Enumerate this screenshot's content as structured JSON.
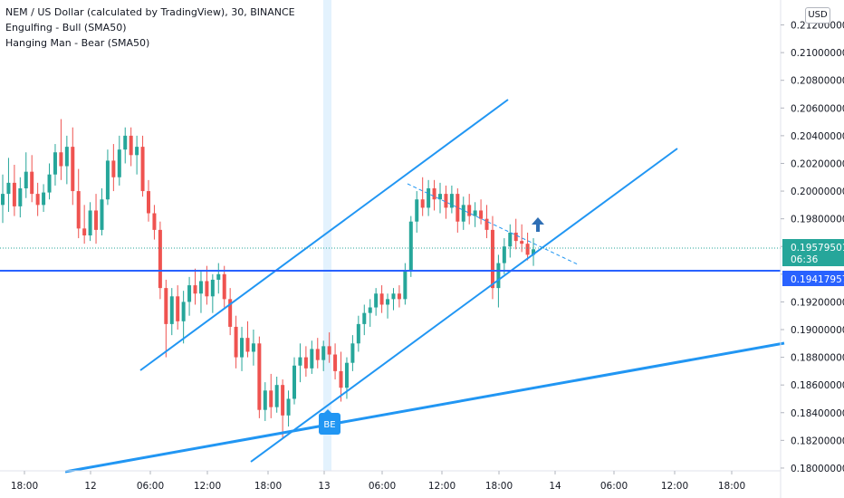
{
  "legend": {
    "title": "NEM / US Dollar (calculated by TradingView), 30, BINANCE",
    "indicator1": "Engulfing - Bull (SMA50)",
    "indicator2": "Hanging Man - Bear (SMA50)"
  },
  "currency_badge": "USD",
  "colors": {
    "up": "#26a69a",
    "down": "#ef5350",
    "drawing": "#2196f3",
    "price_line": "#2962ff",
    "last_price": "#26a69a",
    "arrow": "#2f6fb5",
    "highlight": "#e3f2fd"
  },
  "chart_data": {
    "type": "candlestick",
    "symbol": "NEM / US Dollar",
    "interval": "30",
    "exchange": "BINANCE",
    "x_tick_labels": [
      "18:00",
      "12",
      "06:00",
      "12:00",
      "18:00",
      "13",
      "06:00",
      "12:00",
      "18:00",
      "14",
      "06:00",
      "12:00",
      "18:00"
    ],
    "y_tick_labels": [
      "0.21200000",
      "0.21000000",
      "0.20800000",
      "0.20600000",
      "0.20400000",
      "0.20200000",
      "0.20000000",
      "0.19800000",
      "0.19600000",
      "0.19400000",
      "0.19200000",
      "0.19000000",
      "0.18800000",
      "0.18600000",
      "0.18400000",
      "0.18200000",
      "0.18000000"
    ],
    "ylim": [
      0.1798,
      0.2138
    ],
    "last_price_label": "0.19579501",
    "countdown_label": "06:36",
    "horizontal_level_label": "0.19417957",
    "horizontal_level": 0.19417957,
    "pattern_marker": "BE",
    "candles": [
      {
        "o": 0.199,
        "h": 0.2012,
        "l": 0.1977,
        "c": 0.1998
      },
      {
        "o": 0.1998,
        "h": 0.2024,
        "l": 0.1985,
        "c": 0.2006
      },
      {
        "o": 0.2006,
        "h": 0.2019,
        "l": 0.1982,
        "c": 0.1989
      },
      {
        "o": 0.1989,
        "h": 0.201,
        "l": 0.1981,
        "c": 0.2002
      },
      {
        "o": 0.2002,
        "h": 0.2028,
        "l": 0.1995,
        "c": 0.2014
      },
      {
        "o": 0.2014,
        "h": 0.2026,
        "l": 0.1992,
        "c": 0.1998
      },
      {
        "o": 0.1998,
        "h": 0.2006,
        "l": 0.1982,
        "c": 0.199
      },
      {
        "o": 0.199,
        "h": 0.2005,
        "l": 0.1985,
        "c": 0.1999
      },
      {
        "o": 0.1999,
        "h": 0.202,
        "l": 0.1994,
        "c": 0.2012
      },
      {
        "o": 0.2012,
        "h": 0.2034,
        "l": 0.2004,
        "c": 0.2028
      },
      {
        "o": 0.2028,
        "h": 0.2052,
        "l": 0.2008,
        "c": 0.2018
      },
      {
        "o": 0.2018,
        "h": 0.204,
        "l": 0.2005,
        "c": 0.2032
      },
      {
        "o": 0.2032,
        "h": 0.2046,
        "l": 0.199,
        "c": 0.2
      },
      {
        "o": 0.2,
        "h": 0.2016,
        "l": 0.1966,
        "c": 0.1973
      },
      {
        "o": 0.1973,
        "h": 0.199,
        "l": 0.1962,
        "c": 0.1968
      },
      {
        "o": 0.1968,
        "h": 0.1992,
        "l": 0.1964,
        "c": 0.1986
      },
      {
        "o": 0.1986,
        "h": 0.1998,
        "l": 0.1962,
        "c": 0.1972
      },
      {
        "o": 0.1972,
        "h": 0.2002,
        "l": 0.1968,
        "c": 0.1994
      },
      {
        "o": 0.1994,
        "h": 0.203,
        "l": 0.199,
        "c": 0.2022
      },
      {
        "o": 0.2022,
        "h": 0.2034,
        "l": 0.2,
        "c": 0.201
      },
      {
        "o": 0.201,
        "h": 0.204,
        "l": 0.2004,
        "c": 0.203
      },
      {
        "o": 0.203,
        "h": 0.2046,
        "l": 0.202,
        "c": 0.204
      },
      {
        "o": 0.204,
        "h": 0.2046,
        "l": 0.2018,
        "c": 0.2026
      },
      {
        "o": 0.2026,
        "h": 0.204,
        "l": 0.2012,
        "c": 0.2032
      },
      {
        "o": 0.2032,
        "h": 0.204,
        "l": 0.1996,
        "c": 0.2
      },
      {
        "o": 0.2,
        "h": 0.2008,
        "l": 0.1978,
        "c": 0.1984
      },
      {
        "o": 0.1984,
        "h": 0.199,
        "l": 0.1965,
        "c": 0.1972
      },
      {
        "o": 0.1972,
        "h": 0.1978,
        "l": 0.1922,
        "c": 0.193
      },
      {
        "o": 0.193,
        "h": 0.1936,
        "l": 0.188,
        "c": 0.1904
      },
      {
        "o": 0.1904,
        "h": 0.193,
        "l": 0.1896,
        "c": 0.1924
      },
      {
        "o": 0.1924,
        "h": 0.1932,
        "l": 0.19,
        "c": 0.1906
      },
      {
        "o": 0.1906,
        "h": 0.1928,
        "l": 0.189,
        "c": 0.192
      },
      {
        "o": 0.192,
        "h": 0.1938,
        "l": 0.191,
        "c": 0.1932
      },
      {
        "o": 0.1932,
        "h": 0.1944,
        "l": 0.1918,
        "c": 0.1926
      },
      {
        "o": 0.1926,
        "h": 0.1942,
        "l": 0.1912,
        "c": 0.1935
      },
      {
        "o": 0.1935,
        "h": 0.1946,
        "l": 0.1918,
        "c": 0.1924
      },
      {
        "o": 0.1924,
        "h": 0.194,
        "l": 0.1912,
        "c": 0.1936
      },
      {
        "o": 0.1936,
        "h": 0.1948,
        "l": 0.1926,
        "c": 0.194
      },
      {
        "o": 0.194,
        "h": 0.1946,
        "l": 0.1916,
        "c": 0.1922
      },
      {
        "o": 0.1922,
        "h": 0.193,
        "l": 0.1896,
        "c": 0.1902
      },
      {
        "o": 0.1902,
        "h": 0.191,
        "l": 0.1872,
        "c": 0.188
      },
      {
        "o": 0.188,
        "h": 0.1902,
        "l": 0.187,
        "c": 0.1894
      },
      {
        "o": 0.1894,
        "h": 0.1906,
        "l": 0.188,
        "c": 0.1884
      },
      {
        "o": 0.1884,
        "h": 0.19,
        "l": 0.1874,
        "c": 0.189
      },
      {
        "o": 0.189,
        "h": 0.1895,
        "l": 0.1836,
        "c": 0.1842
      },
      {
        "o": 0.1842,
        "h": 0.1862,
        "l": 0.1834,
        "c": 0.1856
      },
      {
        "o": 0.1856,
        "h": 0.1868,
        "l": 0.1836,
        "c": 0.1844
      },
      {
        "o": 0.1844,
        "h": 0.1866,
        "l": 0.184,
        "c": 0.186
      },
      {
        "o": 0.186,
        "h": 0.1864,
        "l": 0.1822,
        "c": 0.1838
      },
      {
        "o": 0.1838,
        "h": 0.1856,
        "l": 0.183,
        "c": 0.185
      },
      {
        "o": 0.185,
        "h": 0.188,
        "l": 0.1846,
        "c": 0.1874
      },
      {
        "o": 0.1874,
        "h": 0.189,
        "l": 0.1862,
        "c": 0.188
      },
      {
        "o": 0.188,
        "h": 0.1888,
        "l": 0.1866,
        "c": 0.1872
      },
      {
        "o": 0.1872,
        "h": 0.1892,
        "l": 0.1868,
        "c": 0.1886
      },
      {
        "o": 0.1886,
        "h": 0.1894,
        "l": 0.1872,
        "c": 0.1878
      },
      {
        "o": 0.1878,
        "h": 0.1892,
        "l": 0.187,
        "c": 0.1888
      },
      {
        "o": 0.1888,
        "h": 0.1898,
        "l": 0.1876,
        "c": 0.1882
      },
      {
        "o": 0.1882,
        "h": 0.189,
        "l": 0.1864,
        "c": 0.187
      },
      {
        "o": 0.187,
        "h": 0.1884,
        "l": 0.1848,
        "c": 0.1858
      },
      {
        "o": 0.1858,
        "h": 0.188,
        "l": 0.185,
        "c": 0.1876
      },
      {
        "o": 0.1876,
        "h": 0.1896,
        "l": 0.187,
        "c": 0.189
      },
      {
        "o": 0.189,
        "h": 0.191,
        "l": 0.1884,
        "c": 0.1904
      },
      {
        "o": 0.1904,
        "h": 0.1918,
        "l": 0.1896,
        "c": 0.1912
      },
      {
        "o": 0.1912,
        "h": 0.1922,
        "l": 0.1902,
        "c": 0.1916
      },
      {
        "o": 0.1916,
        "h": 0.193,
        "l": 0.191,
        "c": 0.1926
      },
      {
        "o": 0.1926,
        "h": 0.1932,
        "l": 0.1912,
        "c": 0.1918
      },
      {
        "o": 0.1918,
        "h": 0.1926,
        "l": 0.1908,
        "c": 0.1922
      },
      {
        "o": 0.1922,
        "h": 0.193,
        "l": 0.1914,
        "c": 0.1926
      },
      {
        "o": 0.1926,
        "h": 0.1932,
        "l": 0.1916,
        "c": 0.1922
      },
      {
        "o": 0.1922,
        "h": 0.1948,
        "l": 0.1918,
        "c": 0.1942
      },
      {
        "o": 0.1942,
        "h": 0.1982,
        "l": 0.1938,
        "c": 0.1978
      },
      {
        "o": 0.1978,
        "h": 0.2,
        "l": 0.197,
        "c": 0.1994
      },
      {
        "o": 0.1994,
        "h": 0.201,
        "l": 0.1982,
        "c": 0.1988
      },
      {
        "o": 0.1988,
        "h": 0.2008,
        "l": 0.1982,
        "c": 0.2002
      },
      {
        "o": 0.2002,
        "h": 0.2008,
        "l": 0.1986,
        "c": 0.1994
      },
      {
        "o": 0.1994,
        "h": 0.2006,
        "l": 0.1984,
        "c": 0.1998
      },
      {
        "o": 0.1998,
        "h": 0.2004,
        "l": 0.198,
        "c": 0.1988
      },
      {
        "o": 0.1988,
        "h": 0.2004,
        "l": 0.1984,
        "c": 0.1998
      },
      {
        "o": 0.1998,
        "h": 0.2002,
        "l": 0.197,
        "c": 0.1978
      },
      {
        "o": 0.1978,
        "h": 0.1996,
        "l": 0.1972,
        "c": 0.199
      },
      {
        "o": 0.199,
        "h": 0.1998,
        "l": 0.1976,
        "c": 0.1982
      },
      {
        "o": 0.1982,
        "h": 0.1992,
        "l": 0.1974,
        "c": 0.1986
      },
      {
        "o": 0.1986,
        "h": 0.1994,
        "l": 0.1976,
        "c": 0.198
      },
      {
        "o": 0.198,
        "h": 0.199,
        "l": 0.1966,
        "c": 0.1972
      },
      {
        "o": 0.1972,
        "h": 0.1982,
        "l": 0.1922,
        "c": 0.193
      },
      {
        "o": 0.193,
        "h": 0.1954,
        "l": 0.1916,
        "c": 0.1948
      },
      {
        "o": 0.1948,
        "h": 0.1966,
        "l": 0.194,
        "c": 0.196
      },
      {
        "o": 0.196,
        "h": 0.1976,
        "l": 0.1952,
        "c": 0.197
      },
      {
        "o": 0.197,
        "h": 0.198,
        "l": 0.1958,
        "c": 0.1964
      },
      {
        "o": 0.1964,
        "h": 0.1976,
        "l": 0.1956,
        "c": 0.1962
      },
      {
        "o": 0.1962,
        "h": 0.197,
        "l": 0.195,
        "c": 0.1954
      },
      {
        "o": 0.1954,
        "h": 0.1966,
        "l": 0.1946,
        "c": 0.1958
      }
    ]
  }
}
